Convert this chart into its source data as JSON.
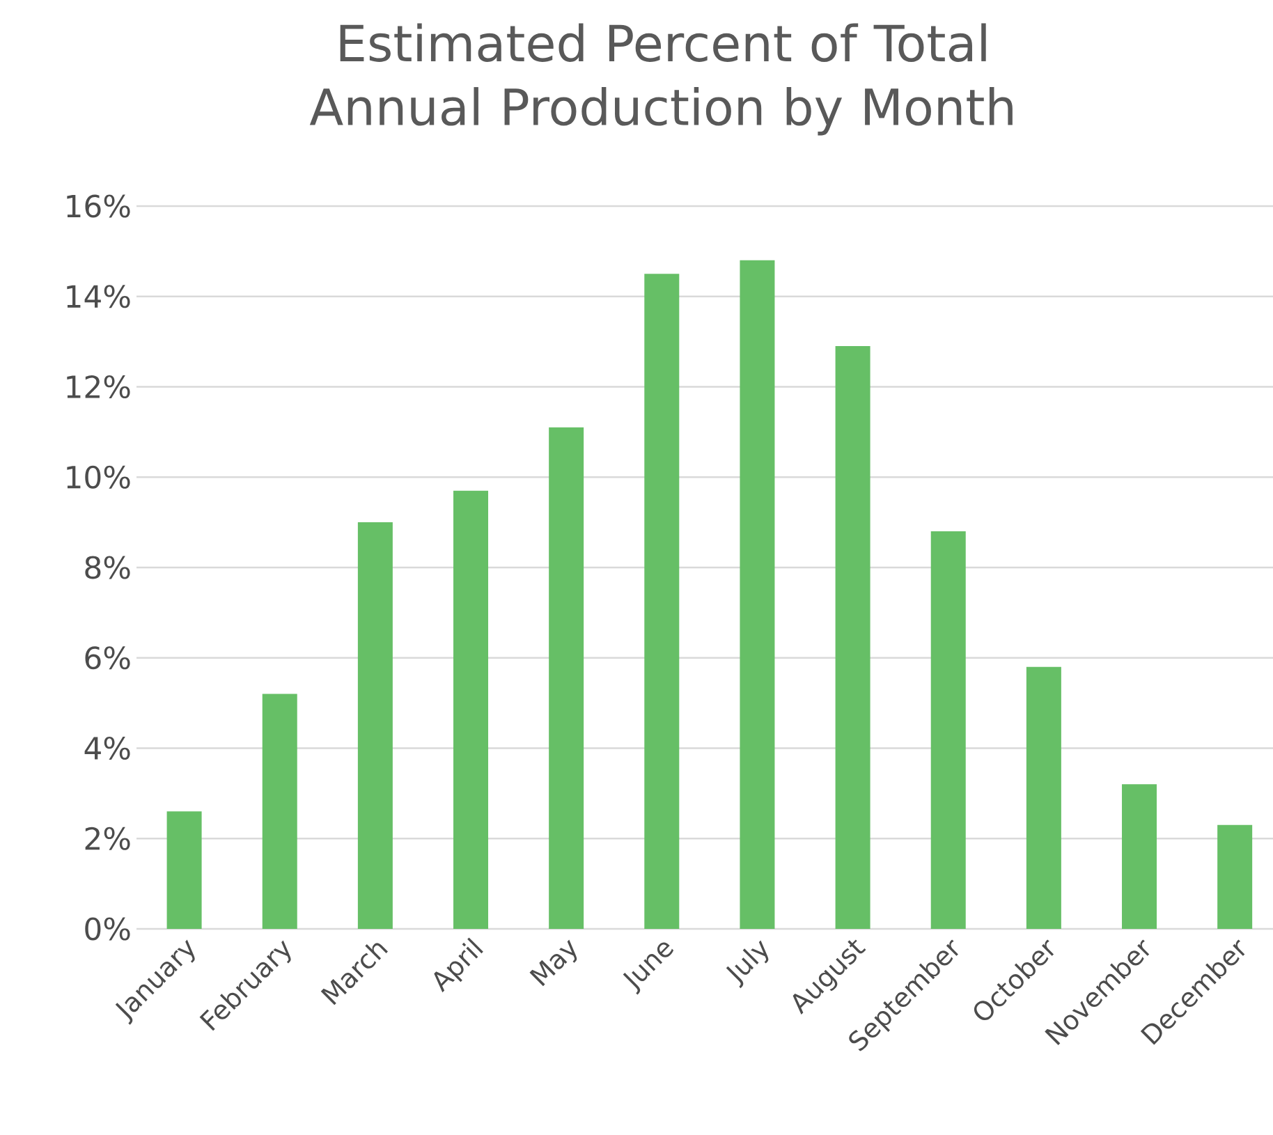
{
  "chart_data": {
    "type": "bar",
    "title": "Estimated Percent of Total Annual Production by Month",
    "categories": [
      "January",
      "February",
      "March",
      "April",
      "May",
      "June",
      "July",
      "August",
      "September",
      "October",
      "November",
      "December"
    ],
    "values": [
      2.6,
      5.2,
      9.0,
      9.7,
      11.1,
      14.5,
      14.8,
      12.9,
      8.8,
      5.8,
      3.2,
      2.3
    ],
    "color": "#66bf66",
    "ylim": [
      0,
      16
    ],
    "yticks": [
      {
        "value": 0,
        "label": "0%"
      },
      {
        "value": 2,
        "label": "2%"
      },
      {
        "value": 4,
        "label": "4%"
      },
      {
        "value": 6,
        "label": "6%"
      },
      {
        "value": 8,
        "label": "8%"
      },
      {
        "value": 10,
        "label": "10%"
      },
      {
        "value": 12,
        "label": "12%"
      },
      {
        "value": 14,
        "label": "14%"
      },
      {
        "value": 16,
        "label": "16%"
      }
    ],
    "grid": "y"
  }
}
